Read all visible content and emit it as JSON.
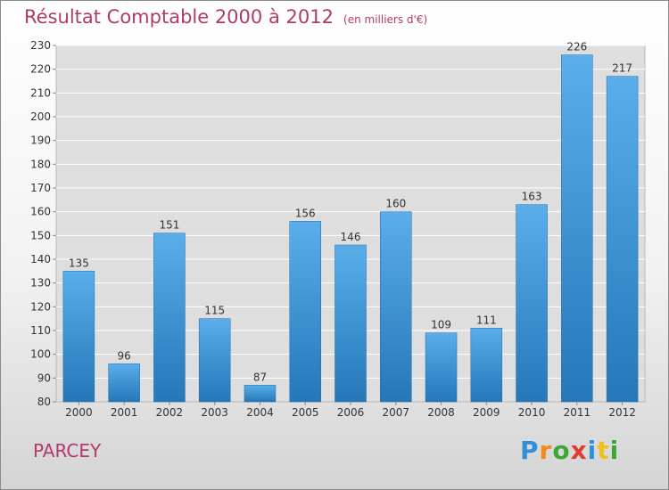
{
  "header": {
    "title": "Résultat Comptable 2000 à 2012",
    "subtitle": "(en milliers d'€)"
  },
  "footer": {
    "town": "PARCEY",
    "logo_text": "Proxiti"
  },
  "colors": {
    "title": "#b03a6a",
    "bar_top": "#5aaeea",
    "bar_bottom": "#2577b8",
    "logo_letters": [
      "#2f8fd8",
      "#f28a1c",
      "#3fa535",
      "#e23b2f",
      "#2f8fd8",
      "#f2c01c",
      "#3fa535"
    ]
  },
  "chart_data": {
    "type": "bar",
    "title": "Résultat Comptable 2000 à 2012",
    "subtitle": "(en milliers d'€)",
    "categories": [
      "2000",
      "2001",
      "2002",
      "2003",
      "2004",
      "2005",
      "2006",
      "2007",
      "2008",
      "2009",
      "2010",
      "2011",
      "2012"
    ],
    "values": [
      135,
      96,
      151,
      115,
      87,
      156,
      146,
      160,
      109,
      111,
      163,
      226,
      217
    ],
    "ylim": [
      80,
      230
    ],
    "ytick_step": 10,
    "grid": true,
    "xlabel": "",
    "ylabel": ""
  }
}
